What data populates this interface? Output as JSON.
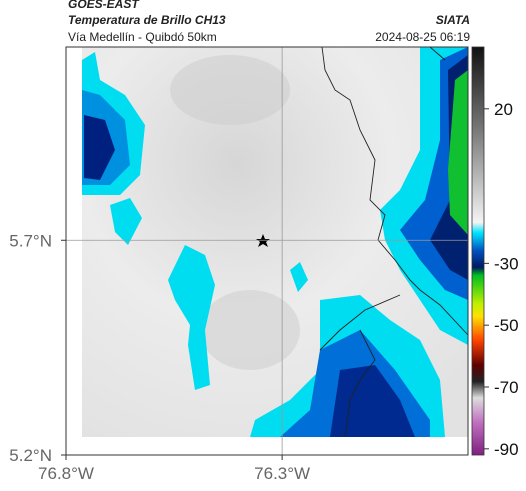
{
  "header": {
    "source": "GOES-EAST",
    "product": "Temperatura de Brillo CH13",
    "agency": "SIATA",
    "route": "Vía Medellín - Quibdó 50km",
    "datetime": "2024-08-25 06:19"
  },
  "map": {
    "xlim": [
      -76.8,
      -75.87
    ],
    "ylim": [
      5.2,
      6.15
    ],
    "xticks": [
      {
        "value": -76.8,
        "label": "76.8°W"
      },
      {
        "value": -76.3,
        "label": "76.3°W"
      }
    ],
    "yticks": [
      {
        "value": 5.7,
        "label": "5.7°N"
      },
      {
        "value": 5.2,
        "label": "5.2°N"
      }
    ]
  },
  "colorbar": {
    "lim": [
      -92,
      40
    ],
    "ticks": [
      20,
      -30,
      -50,
      -70,
      -90
    ]
  }
}
